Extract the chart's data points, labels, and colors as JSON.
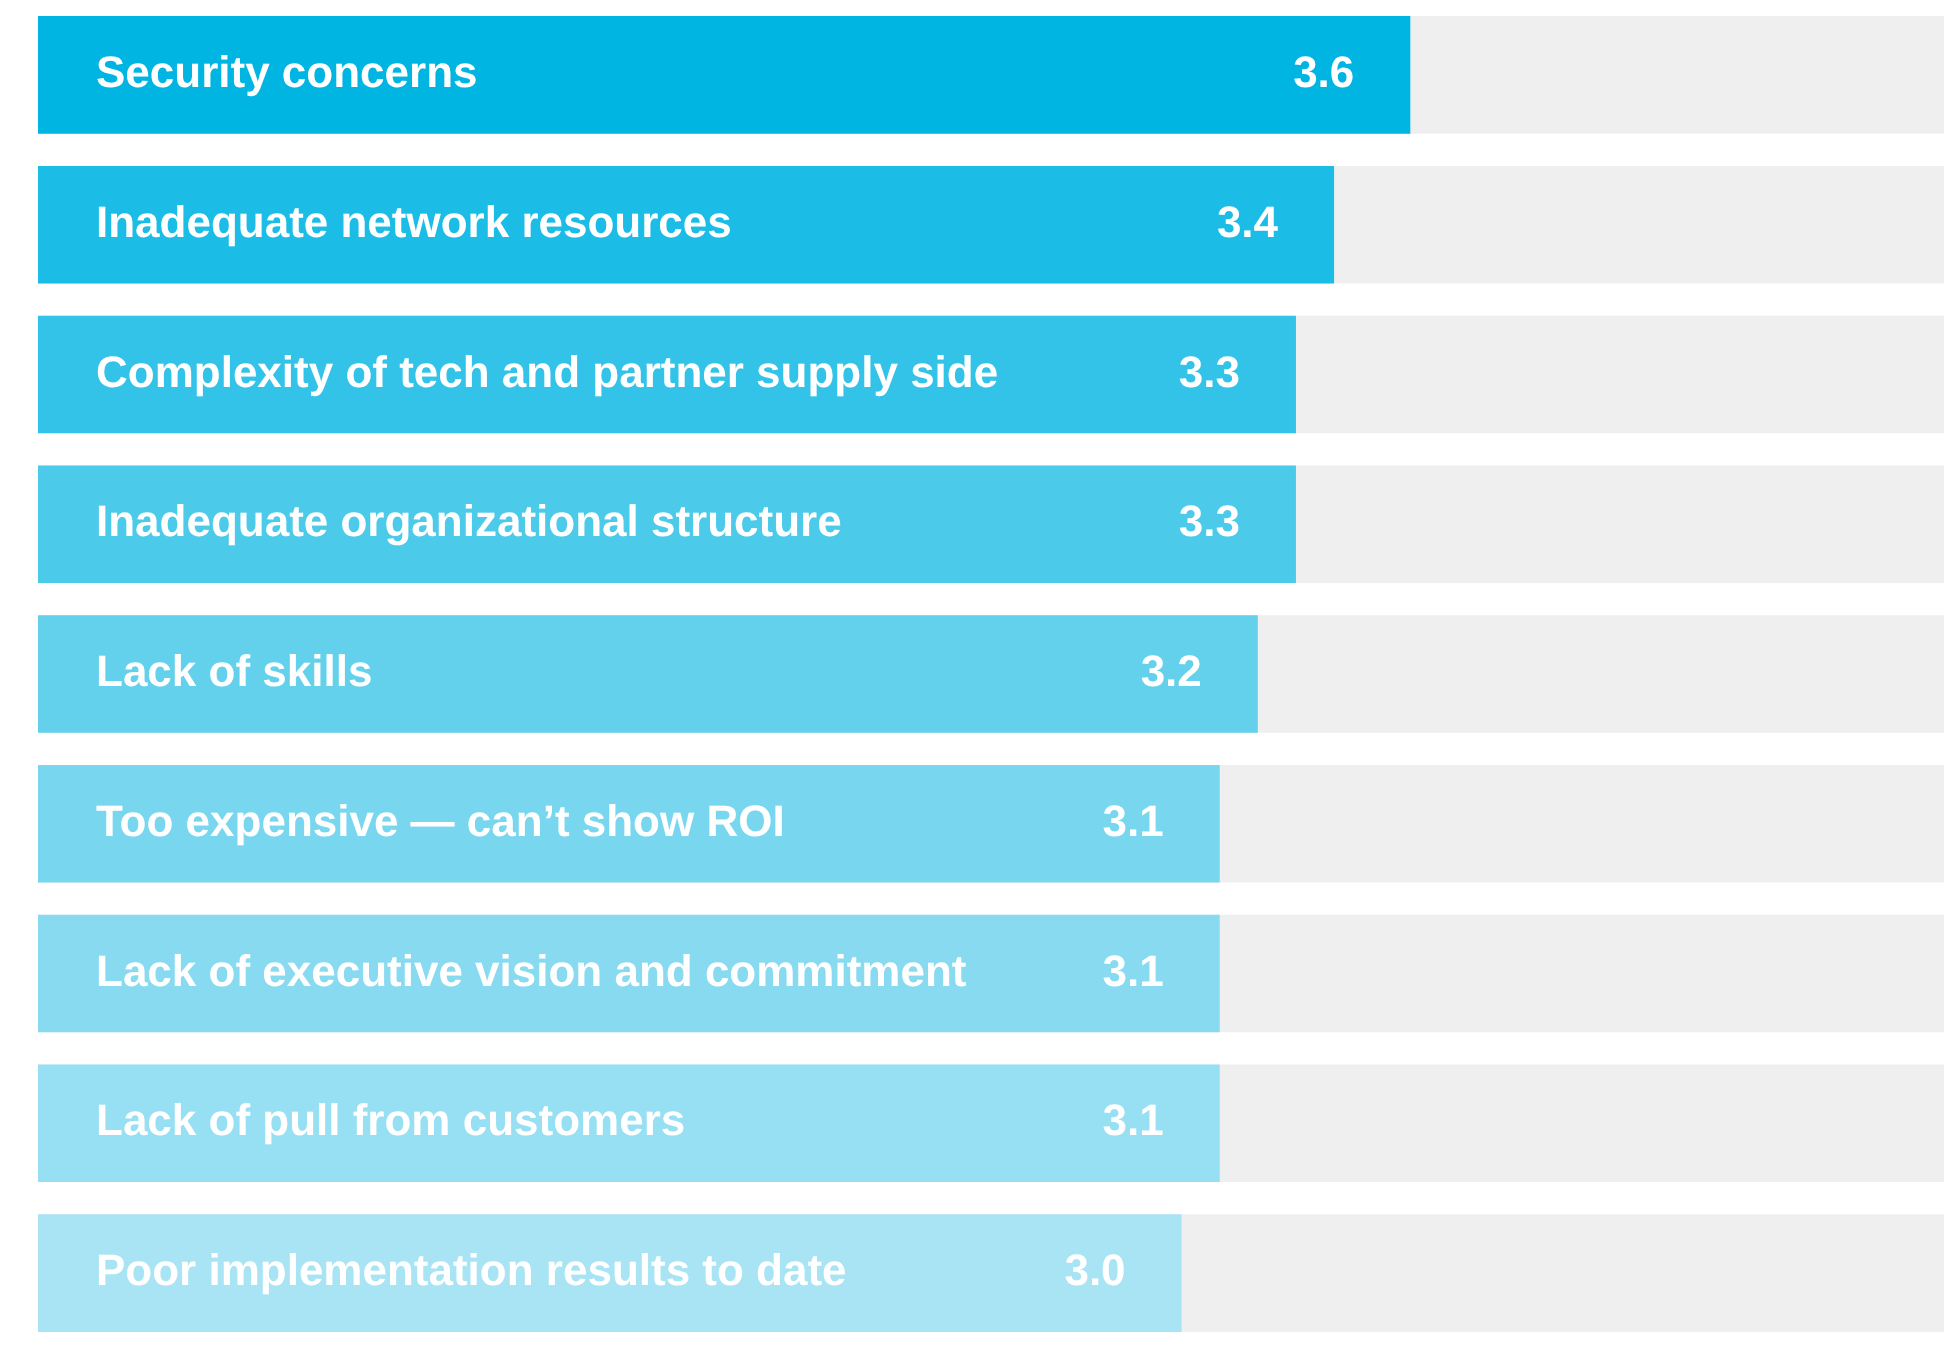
{
  "chart_data": {
    "type": "bar",
    "orientation": "horizontal",
    "categories": [
      "Security concerns",
      "Inadequate network resources",
      "Complexity of tech and partner supply side",
      "Inadequate organizational structure",
      "Lack of skills",
      "Too expensive — can’t show ROI",
      "Lack of executive vision and commitment",
      "Lack of pull from customers",
      "Poor implementation results to date"
    ],
    "values": [
      3.6,
      3.4,
      3.3,
      3.3,
      3.2,
      3.1,
      3.1,
      3.1,
      3.0
    ],
    "colors": [
      "#00b5e2",
      "#1bbce5",
      "#33c3e8",
      "#4ccaea",
      "#63d0ec",
      "#78d6ef",
      "#87daf0",
      "#97dff2",
      "#a8e4f4"
    ],
    "value_labels": [
      "3.6",
      "3.4",
      "3.3",
      "3.3",
      "3.2",
      "3.1",
      "3.1",
      "3.1",
      "3.0"
    ],
    "xlim": [
      0,
      5
    ],
    "tick_labels": false,
    "grid": false,
    "legend": false
  }
}
